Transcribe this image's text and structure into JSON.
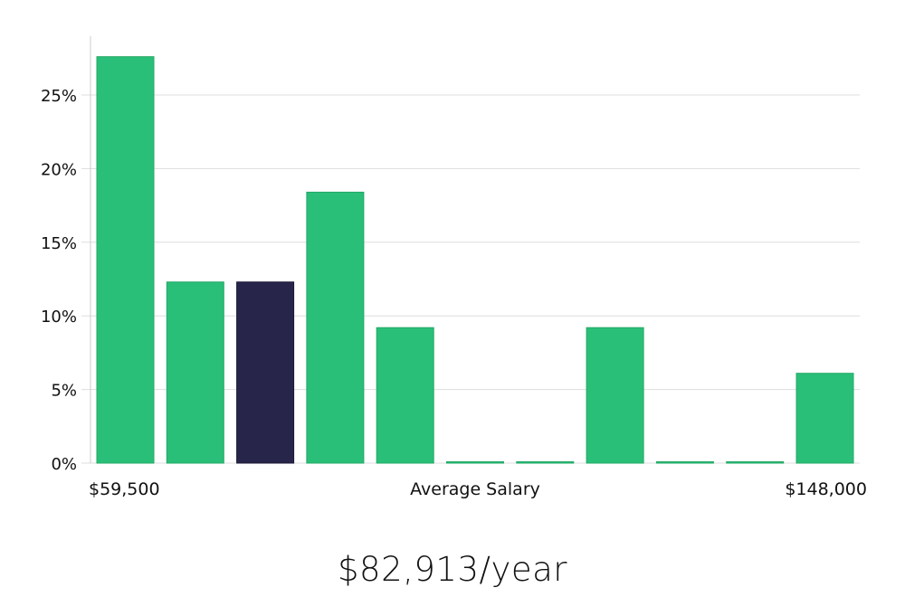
{
  "chart_data": {
    "type": "bar",
    "title": "",
    "xlabel": "Average Salary",
    "x_range_labels": {
      "min": "$59,500",
      "max": "$148,000"
    },
    "ylabel": "",
    "ylim": [
      0,
      28
    ],
    "yticks": [
      {
        "value": 0,
        "label": "0%"
      },
      {
        "value": 5,
        "label": "5%"
      },
      {
        "value": 10,
        "label": "10%"
      },
      {
        "value": 15,
        "label": "15%"
      },
      {
        "value": 20,
        "label": "20%"
      },
      {
        "value": 25,
        "label": "25%"
      }
    ],
    "grid": true,
    "values": [
      27.6,
      12.3,
      12.3,
      18.4,
      9.2,
      0,
      0,
      9.2,
      0,
      0,
      6.1
    ],
    "highlight_index": 2,
    "colors": {
      "bar": "#2abf78",
      "highlight": "#28254a",
      "grid": "#dddddd",
      "axis": "#cccccc"
    }
  },
  "headline": "$82,913/year"
}
